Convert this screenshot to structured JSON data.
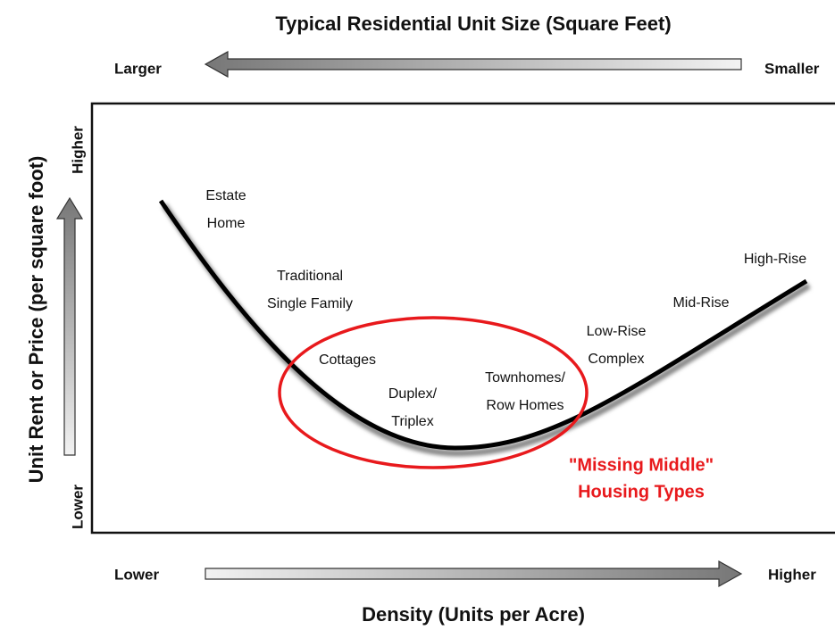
{
  "header": {
    "title": "Typical Residential Unit Size (Square Feet)",
    "left": "Larger",
    "right": "Smaller"
  },
  "y_axis": {
    "label": "Unit Rent or Price (per square foot)",
    "top": "Higher",
    "bottom": "Lower"
  },
  "x_axis": {
    "label": "Density (Units per Acre)",
    "left": "Lower",
    "right": "Higher"
  },
  "housing_types": [
    [
      "Estate",
      "Home"
    ],
    [
      "Traditional",
      "Single Family"
    ],
    [
      "Cottages"
    ],
    [
      "Duplex/",
      "Triplex"
    ],
    [
      "Townhomes/",
      "Row Homes"
    ],
    [
      "Low-Rise",
      "Complex"
    ],
    [
      "Mid-Rise"
    ],
    [
      "High-Rise"
    ]
  ],
  "callout": [
    "\"Missing Middle\"",
    "Housing Types"
  ]
}
